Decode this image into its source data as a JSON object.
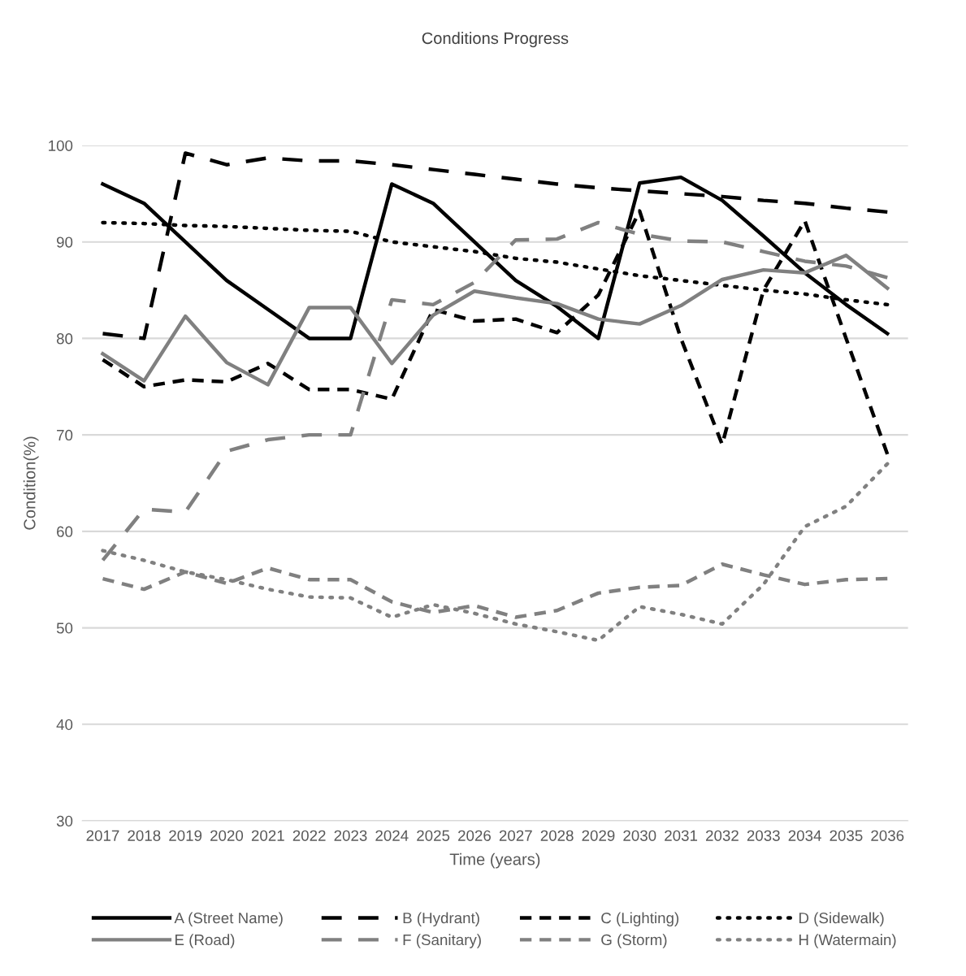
{
  "chart_data": {
    "type": "line",
    "title": "Conditions Progress",
    "xlabel": "Time (years)",
    "ylabel": "Condition(%)",
    "categories": [
      "2017",
      "2018",
      "2019",
      "2020",
      "2021",
      "2022",
      "2023",
      "2024",
      "2025",
      "2026",
      "2027",
      "2028",
      "2029",
      "2030",
      "2031",
      "2032",
      "2033",
      "2034",
      "2035",
      "2036"
    ],
    "ylim": [
      30,
      100
    ],
    "yticks": [
      30,
      40,
      50,
      60,
      70,
      80,
      90,
      100
    ],
    "grid": "y",
    "legend": "bottom",
    "series": [
      {
        "name": "A (Street Name)",
        "color": "#000000",
        "line_style": "solid",
        "values": [
          96,
          94,
          90,
          86,
          83,
          80,
          80,
          96,
          94,
          90,
          86,
          83.3,
          80,
          96.1,
          96.7,
          94.3,
          90.6,
          86.8,
          83.5,
          80.5
        ]
      },
      {
        "name": "B (Hydrant)",
        "color": "#000000",
        "line_style": "long dashed",
        "values": [
          80.5,
          80,
          99.2,
          98,
          98.7,
          98.4,
          98.4,
          98,
          97.5,
          97,
          96.5,
          96,
          95.6,
          95.3,
          95,
          94.7,
          94.3,
          94,
          93.5,
          93.1
        ]
      },
      {
        "name": "C (Lighting)",
        "color": "#000000",
        "line_style": "dashed",
        "values": [
          77.8,
          75,
          75.7,
          75.5,
          77.4,
          74.7,
          74.7,
          73.7,
          83,
          81.8,
          82,
          80.6,
          84.5,
          93.2,
          80,
          69,
          85,
          92.2,
          80,
          68
        ]
      },
      {
        "name": "D (Sidewalk)",
        "color": "#000000",
        "line_style": "dotted",
        "values": [
          92,
          91.9,
          91.7,
          91.6,
          91.4,
          91.2,
          91.1,
          90,
          89.5,
          89,
          88.3,
          87.9,
          87.2,
          86.5,
          86,
          85.5,
          85,
          84.6,
          84,
          83.5
        ]
      },
      {
        "name": "E (Road)",
        "color": "#808080",
        "line_style": "solid",
        "values": [
          78.4,
          75.6,
          82.3,
          77.5,
          75.2,
          83.2,
          83.2,
          77.4,
          82.4,
          84.9,
          84.2,
          83.6,
          82,
          81.5,
          83.4,
          86.1,
          87.1,
          86.8,
          88.6,
          85.2
        ]
      },
      {
        "name": "F (Sanitary)",
        "color": "#808080",
        "line_style": "long dashed",
        "values": [
          57,
          62.3,
          62,
          68.3,
          69.5,
          70,
          70,
          84,
          83.5,
          85.8,
          90.2,
          90.3,
          92,
          90.8,
          90.1,
          90,
          89,
          88,
          87.5,
          86.3
        ]
      },
      {
        "name": "G (Storm)",
        "color": "#808080",
        "line_style": "dashed",
        "values": [
          55.1,
          54,
          55.8,
          54.6,
          56.2,
          55,
          55,
          52.7,
          51.6,
          52.3,
          51.1,
          51.8,
          53.6,
          54.2,
          54.4,
          56.6,
          55.5,
          54.5,
          55,
          55.1
        ]
      },
      {
        "name": "H (Watermain)",
        "color": "#808080",
        "line_style": "dotted",
        "values": [
          58,
          57,
          55.8,
          55,
          54,
          53.2,
          53.1,
          51.1,
          52.4,
          51.5,
          50.4,
          49.6,
          48.7,
          52.2,
          51.4,
          50.4,
          54.5,
          60.5,
          62.6,
          67
        ]
      }
    ]
  }
}
